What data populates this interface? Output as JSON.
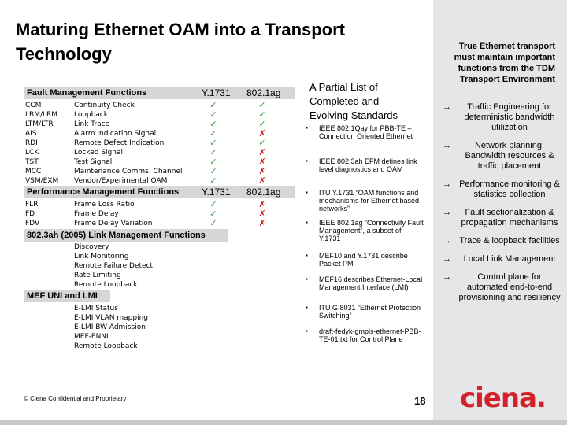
{
  "title": "Maturing Ethernet OAM into a Transport Technology",
  "fault": {
    "header": "Fault Management Functions",
    "col_y1731": "Y.1731",
    "col_8021ag": "802.1ag",
    "rows": [
      {
        "abbr": "CCM",
        "name": "Continuity Check",
        "y1731": "check",
        "ag": "check"
      },
      {
        "abbr": "LBM/LRM",
        "name": "Loopback",
        "y1731": "check",
        "ag": "check"
      },
      {
        "abbr": "LTM/LTR",
        "name": "Link Trace",
        "y1731": "check",
        "ag": "check"
      },
      {
        "abbr": "AIS",
        "name": "Alarm Indication Signal",
        "y1731": "check",
        "ag": "x"
      },
      {
        "abbr": "RDI",
        "name": "Remote Defect Indication",
        "y1731": "check",
        "ag": "check"
      },
      {
        "abbr": "LCK",
        "name": "Locked Signal",
        "y1731": "check",
        "ag": "x"
      },
      {
        "abbr": "TST",
        "name": "Test Signal",
        "y1731": "check",
        "ag": "x"
      },
      {
        "abbr": "MCC",
        "name": "Maintenance Comms. Channel",
        "y1731": "check",
        "ag": "x"
      },
      {
        "abbr": "VSM/EXM",
        "name": "Vendor/Experimental OAM",
        "y1731": "check",
        "ag": "x"
      }
    ]
  },
  "perf": {
    "header": "Performance Management Functions",
    "col_y1731": "Y.1731",
    "col_8021ag": "802.1ag",
    "rows": [
      {
        "abbr": "FLR",
        "name": "Frame Loss Ratio",
        "y1731": "check",
        "ag": "x"
      },
      {
        "abbr": "FD",
        "name": "Frame Delay",
        "y1731": "check",
        "ag": "x"
      },
      {
        "abbr": "FDV",
        "name": "Frame Delay Variation",
        "y1731": "check",
        "ag": "x"
      }
    ]
  },
  "link": {
    "header": "802.3ah (2005) Link Management Functions",
    "items": [
      "Discovery",
      "Link Monitoring",
      "Remote Failure Detect",
      "Rate Limiting",
      "Remote Loopback"
    ]
  },
  "mef": {
    "header": "MEF UNI and LMI",
    "items": [
      "E-LMI Status",
      "E-LMI VLAN mapping",
      "E-LMI BW Admission",
      "MEF-ENNI",
      "Remote Loopback"
    ]
  },
  "standards": {
    "heading": "A Partial List of Completed and Evolving Standards",
    "items": [
      "IEEE 802.1Qay for PBB-TE – Connection Oriented Ethernet",
      "IEEE 802.3ah EFM defines link level diagnostics and OAM",
      "ITU Y.1731 “OAM functions and mechanisms for Ethernet based networks”",
      "IEEE 802.1ag “Connectivity Fault Management”, a subset of Y.1731",
      "MEF10 and Y.1731 describe Packet PM",
      "MEF16 describes Ethernet-Local Management Interface (LMI)",
      "ITU G.8031 “Ethernet Protection Switching”",
      "draft-fedyk-gmpls-ethernet-PBB-TE-01.txt for Control Plane"
    ]
  },
  "sidebar": {
    "heading": "True Ethernet transport must maintain important functions from the TDM Transport Environment",
    "items": [
      "Traffic Engineering for deterministic bandwidth utilization",
      "Network planning: Bandwidth resources & traffic placement",
      "Performance monitoring & statistics collection",
      "Fault sectionalization & propagation mechanisms",
      "Trace & loopback facilities",
      "Local Link Management",
      "Control plane for automated end-to-end provisioning and resiliency"
    ]
  },
  "footer": {
    "confidential": "© Ciena Confidential and Proprietary",
    "page": "18",
    "logo": "ciena."
  }
}
